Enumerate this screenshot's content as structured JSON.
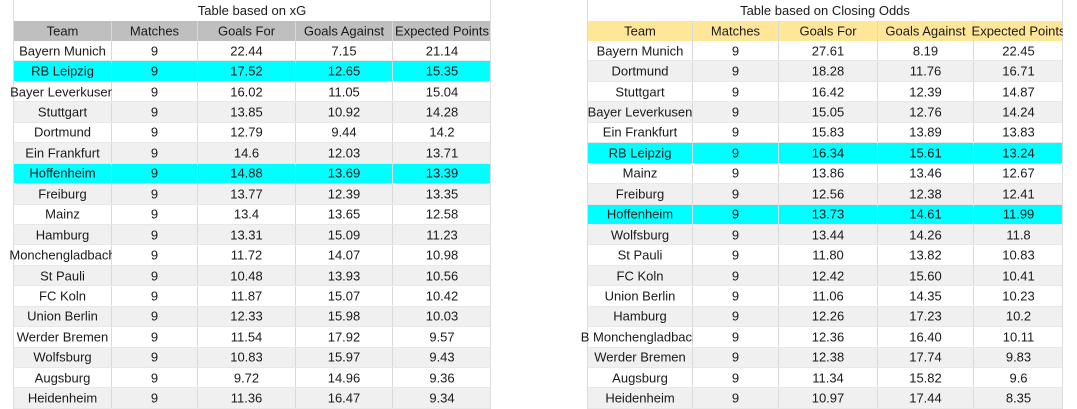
{
  "colors": {
    "highlight": "#00FFFF",
    "stripe": "#F0F0F0",
    "xg_header_bg": "#BFBFBF",
    "odds_header_bg": "#FFE699",
    "gridline": "#D9D9D9"
  },
  "tables": [
    {
      "title": "Table based on xG",
      "header_bg": "#BFBFBF",
      "columns": [
        "Team",
        "Matches",
        "Goals For",
        "Goals Against",
        "Expected Points"
      ],
      "highlighted_rows": [
        1,
        6
      ],
      "rows": [
        [
          "Bayern Munich",
          "9",
          "22.44",
          "7.15",
          "21.14"
        ],
        [
          "RB Leipzig",
          "9",
          "17.52",
          "12.65",
          "15.35"
        ],
        [
          "Bayer Leverkusen",
          "9",
          "16.02",
          "11.05",
          "15.04"
        ],
        [
          "Stuttgart",
          "9",
          "13.85",
          "10.92",
          "14.28"
        ],
        [
          "Dortmund",
          "9",
          "12.79",
          "9.44",
          "14.2"
        ],
        [
          "Ein Frankfurt",
          "9",
          "14.6",
          "12.03",
          "13.71"
        ],
        [
          "Hoffenheim",
          "9",
          "14.88",
          "13.69",
          "13.39"
        ],
        [
          "Freiburg",
          "9",
          "13.77",
          "12.39",
          "13.35"
        ],
        [
          "Mainz",
          "9",
          "13.4",
          "13.65",
          "12.58"
        ],
        [
          "Hamburg",
          "9",
          "13.31",
          "15.09",
          "11.23"
        ],
        [
          "Monchengladbach",
          "9",
          "11.72",
          "14.07",
          "10.98"
        ],
        [
          "St Pauli",
          "9",
          "10.48",
          "13.93",
          "10.56"
        ],
        [
          "FC Koln",
          "9",
          "11.87",
          "15.07",
          "10.42"
        ],
        [
          "Union Berlin",
          "9",
          "12.33",
          "15.98",
          "10.03"
        ],
        [
          "Werder Bremen",
          "9",
          "11.54",
          "17.92",
          "9.57"
        ],
        [
          "Wolfsburg",
          "9",
          "10.83",
          "15.97",
          "9.43"
        ],
        [
          "Augsburg",
          "9",
          "9.72",
          "14.96",
          "9.36"
        ],
        [
          "Heidenheim",
          "9",
          "11.36",
          "16.47",
          "9.34"
        ]
      ]
    },
    {
      "title": "Table based on Closing Odds",
      "header_bg": "#FFE699",
      "columns": [
        "Team",
        "Matches",
        "Goals For",
        "Goals Against",
        "Expected Points"
      ],
      "highlighted_rows": [
        5,
        8
      ],
      "rows": [
        [
          "Bayern Munich",
          "9",
          "27.61",
          "8.19",
          "22.45"
        ],
        [
          "Dortmund",
          "9",
          "18.28",
          "11.76",
          "16.71"
        ],
        [
          "Stuttgart",
          "9",
          "16.42",
          "12.39",
          "14.87"
        ],
        [
          "Bayer Leverkusen",
          "9",
          "15.05",
          "12.76",
          "14.24"
        ],
        [
          "Ein Frankfurt",
          "9",
          "15.83",
          "13.89",
          "13.83"
        ],
        [
          "RB Leipzig",
          "9",
          "16.34",
          "15.61",
          "13.24"
        ],
        [
          "Mainz",
          "9",
          "13.86",
          "13.46",
          "12.67"
        ],
        [
          "Freiburg",
          "9",
          "12.56",
          "12.38",
          "12.41"
        ],
        [
          "Hoffenheim",
          "9",
          "13.73",
          "14.61",
          "11.99"
        ],
        [
          "Wolfsburg",
          "9",
          "13.44",
          "14.26",
          "11.8"
        ],
        [
          "St Pauli",
          "9",
          "11.80",
          "13.82",
          "10.83"
        ],
        [
          "FC Koln",
          "9",
          "12.42",
          "15.60",
          "10.41"
        ],
        [
          "Union Berlin",
          "9",
          "11.06",
          "14.35",
          "10.23"
        ],
        [
          "Hamburg",
          "9",
          "12.26",
          "17.23",
          "10.2"
        ],
        [
          "B Monchengladbach",
          "9",
          "12.36",
          "16.40",
          "10.11"
        ],
        [
          "Werder Bremen",
          "9",
          "12.38",
          "17.74",
          "9.83"
        ],
        [
          "Augsburg",
          "9",
          "11.34",
          "15.82",
          "9.6"
        ],
        [
          "Heidenheim",
          "9",
          "10.97",
          "17.44",
          "8.35"
        ]
      ]
    }
  ]
}
